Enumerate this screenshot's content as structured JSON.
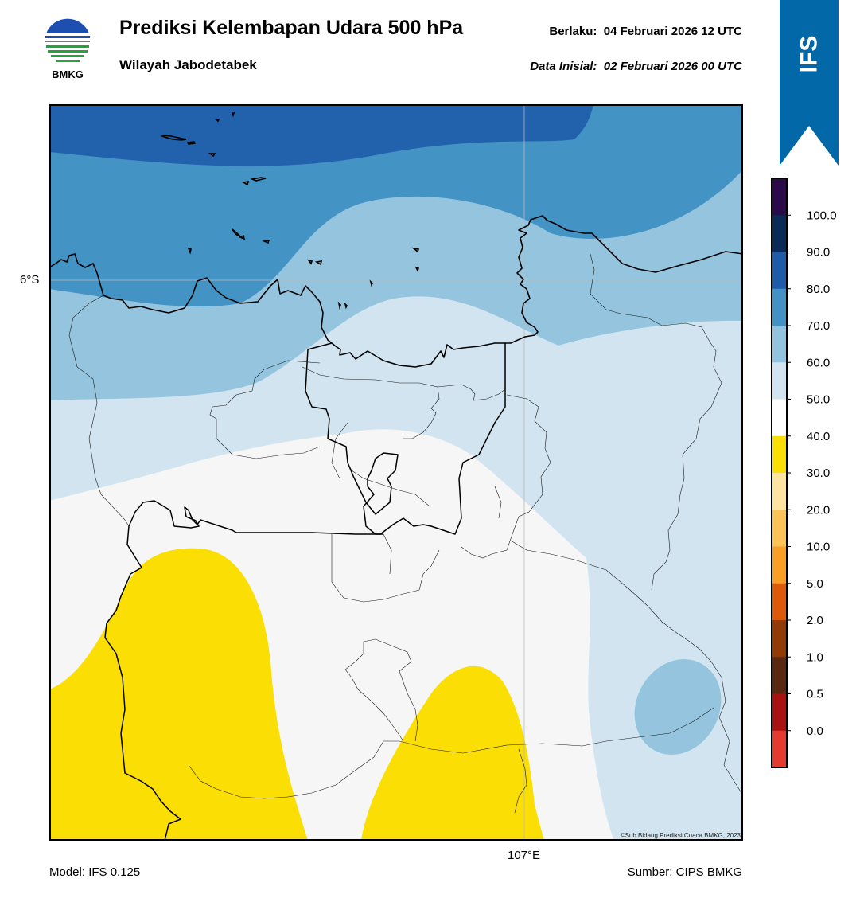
{
  "header": {
    "logo_text": "BMKG",
    "title": "Prediksi Kelembapan Udara 500 hPa",
    "region": "Wilayah Jabodetabek",
    "valid_label": "Berlaku:",
    "valid_value": "04 Februari 2026 12 UTC",
    "init_label": "Data Inisial:",
    "init_value": "02 Februari 2026 00 UTC"
  },
  "banner": {
    "text": "IFS",
    "color": "#0268a8"
  },
  "axes": {
    "lat_label": "6°S",
    "lon_label": "107°E"
  },
  "footer": {
    "model": "Model: IFS 0.125",
    "source": "Sumber: CIPS BMKG",
    "copyright": "©Sub Bidang Prediksi Cuaca BMKG, 2023"
  },
  "colorbar": {
    "ticks": [
      "100.0",
      "90.0",
      "80.0",
      "70.0",
      "60.0",
      "50.0",
      "40.0",
      "30.0",
      "20.0",
      "10.0",
      "5.0",
      "2.0",
      "1.0",
      "0.5",
      "0.0"
    ],
    "colors_top_to_bottom": [
      "#2a0a4a",
      "#0a2a58",
      "#1e5ba8",
      "#4292c6",
      "#93c4df",
      "#d1e4f0",
      "#ffffff",
      "#fbdf04",
      "#fde4a0",
      "#fdc258",
      "#fb9e26",
      "#dd5a0a",
      "#933b07",
      "#5a2710",
      "#aa1111",
      "#e53a30"
    ]
  },
  "map_colors": {
    "band_80": "#2261ab",
    "band_70": "#4493c5",
    "band_60": "#94c4de",
    "band_50": "#d1e4f0",
    "band_40": "#f6f6f6",
    "band_30": "#fbdf04",
    "coast": "#000000",
    "grid": "#b0b0b0"
  }
}
